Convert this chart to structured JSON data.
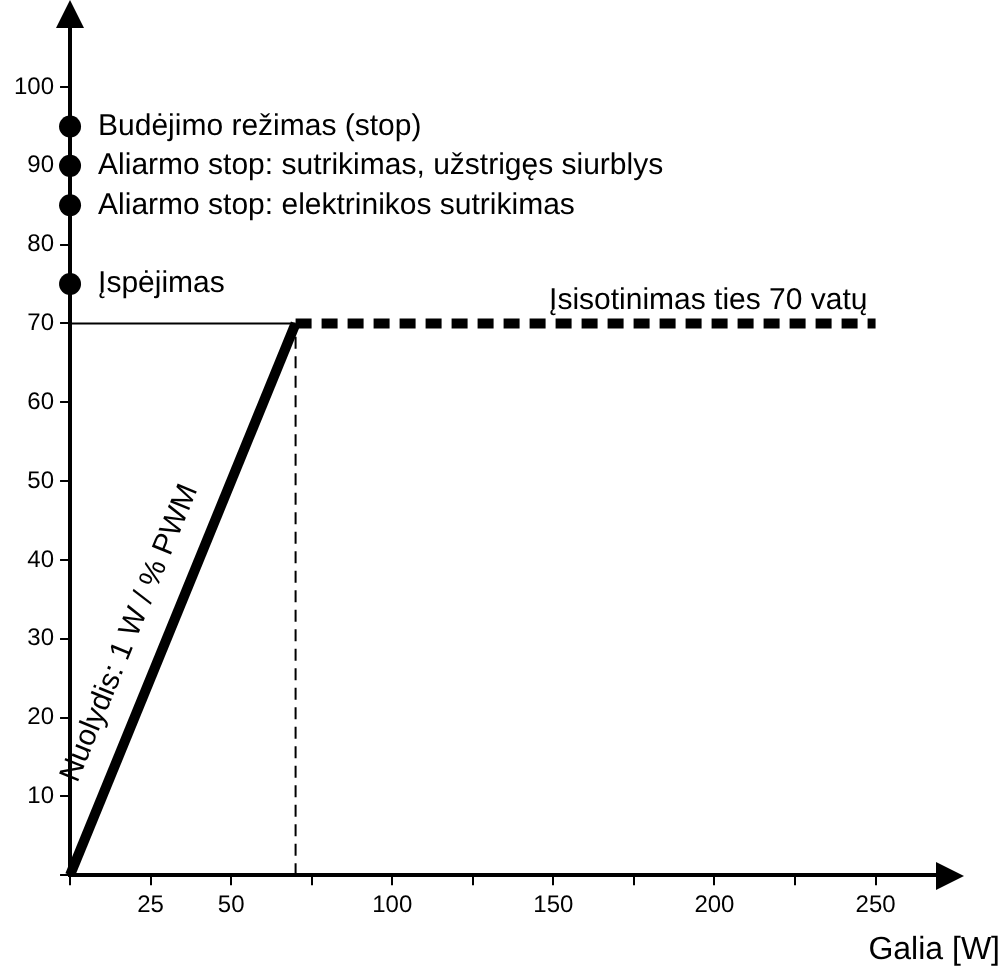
{
  "chart_data": {
    "type": "line",
    "xlabel": "Galia [W]",
    "xlim": [
      0,
      270
    ],
    "ylim": [
      0,
      108
    ],
    "xticks": [
      {
        "value": 0,
        "label": null
      },
      25,
      50,
      {
        "value": 75,
        "label": null
      },
      100,
      {
        "value": 125,
        "label": null
      },
      150,
      {
        "value": 175,
        "label": null
      },
      200,
      {
        "value": 225,
        "label": null
      },
      250
    ],
    "yticks": [
      {
        "value": 0,
        "label": null
      },
      10,
      20,
      30,
      40,
      50,
      60,
      70,
      80,
      90,
      100
    ],
    "grid": false,
    "legend": false,
    "series": [
      {
        "x": [
          0,
          70
        ],
        "values": [
          0,
          70
        ],
        "color": "#000000",
        "line_style": "solid"
      },
      {
        "x": [
          70,
          250
        ],
        "values": [
          70,
          70
        ],
        "color": "#000000",
        "line_style": "dashed"
      },
      {
        "x": [
          0,
          70
        ],
        "values": [
          70,
          70
        ],
        "color": "#000000",
        "line_style": "solid"
      },
      {
        "x": [
          70,
          70
        ],
        "values": [
          0,
          70
        ],
        "color": "#000000",
        "line_style": "dashed"
      },
      {
        "type": "scatter",
        "x": [
          0,
          0,
          0,
          0
        ],
        "values": [
          95,
          90,
          85,
          75
        ],
        "color": "#000000",
        "marker": "circle"
      }
    ],
    "annotations": [
      "Budėjimo režimas (stop)",
      "Aliarmo stop: sutrikimas, užstrigęs siurblys",
      "Aliarmo stop: elektrinikos sutrikimas",
      "Įspėjimas",
      "Įsisotinimas ties 70 vatų",
      "Nuolydis: 1 W / % PWM"
    ]
  }
}
